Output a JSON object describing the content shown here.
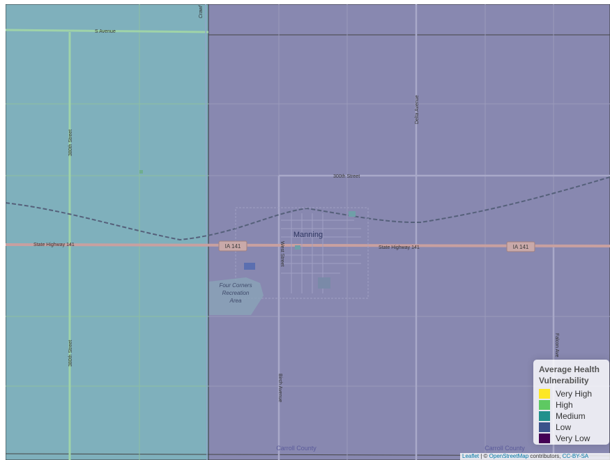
{
  "map": {
    "roads": {
      "s_avenue": "S Avenue",
      "street_380th_top": "380th Street",
      "street_380th_bottom": "380th Street",
      "street_300th": "300th Street",
      "delta_avenue": "Delta Avenue",
      "state_highway_west": "State Highway 141",
      "state_highway_east": "State Highway 141",
      "west_street": "West Street",
      "birch_avenue": "Birch Avenue",
      "falcon_avenue": "Falcon Ave",
      "crawford": "Crawf"
    },
    "shields": [
      "IA 141",
      "IA 141"
    ],
    "places": {
      "town": "Manning",
      "recreation_line1": "Four Corners",
      "recreation_line2": "Recreation",
      "recreation_line3": "Area"
    },
    "county_labels": [
      "Carroll County",
      "Carroll County"
    ],
    "choropleth": {
      "west_region_level": "Medium",
      "east_region_level": "Low"
    }
  },
  "legend": {
    "title_line1": "Average Health",
    "title_line2": "Vulnerability",
    "items": [
      {
        "label": "Very High",
        "color": "#FDE725"
      },
      {
        "label": "High",
        "color": "#5EC962"
      },
      {
        "label": "Medium",
        "color": "#21918C"
      },
      {
        "label": "Low",
        "color": "#3B528B"
      },
      {
        "label": "Very Low",
        "color": "#440154"
      }
    ]
  },
  "attribution": {
    "leaflet": "Leaflet",
    "separator": " | © ",
    "osm": "OpenStreetMap",
    "contributors": " contributors, ",
    "license": "CC-BY-SA"
  }
}
